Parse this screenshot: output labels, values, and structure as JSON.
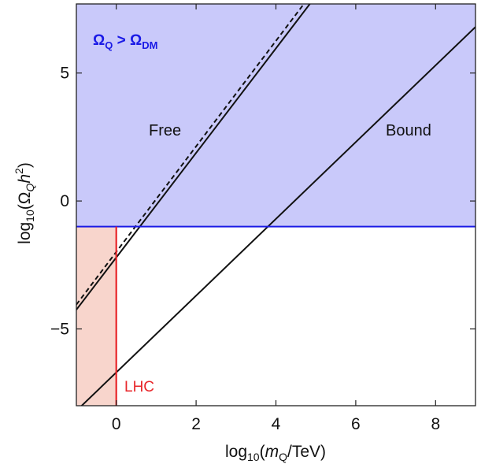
{
  "chart_data": {
    "type": "line",
    "title": "",
    "xlabel": {
      "prefix": "log",
      "sub": "10",
      "open": "(",
      "var": "m",
      "var_sub": "Q",
      "rest": "/TeV)"
    },
    "ylabel": {
      "prefix": "log",
      "sub": "10",
      "open": "(",
      "greek": "Ω",
      "greek_sub": "Q",
      "var": "h",
      "sup": "2",
      "close": ")"
    },
    "xlim": [
      -1,
      9
    ],
    "ylim": [
      -8,
      7.7
    ],
    "xticks": [
      0,
      2,
      4,
      6,
      8
    ],
    "xtick_labels": [
      "0",
      "2",
      "4",
      "6",
      "8"
    ],
    "yticks": [
      -5,
      0,
      5
    ],
    "ytick_labels": [
      "−5",
      "0",
      "5"
    ],
    "grid": false,
    "colors": {
      "dm_fill": "#c9c9fa",
      "dm_line": "#1a1ae6",
      "lhc_fill": "#f8d5cc",
      "lhc_line": "#e8262a",
      "curve": "#111111"
    },
    "regions": {
      "dm_excluded": {
        "label": {
          "a": "Ω",
          "a_sub": "Q",
          "op": " > ",
          "b": "Ω",
          "b_sub": "DM"
        },
        "y_min": -1
      },
      "lhc": {
        "label": "LHC",
        "x_max": 0
      }
    },
    "series": [
      {
        "name": "Free",
        "style": "solid",
        "x": [
          -1,
          4.85
        ],
        "y": [
          -4.25,
          7.7
        ]
      },
      {
        "name": "",
        "style": "dashed",
        "x": [
          -1,
          4.7
        ],
        "y": [
          -4.05,
          7.7
        ]
      },
      {
        "name": "Bound",
        "style": "solid",
        "x": [
          -1,
          9
        ],
        "y": [
          -8.2,
          6.8
        ]
      }
    ]
  }
}
